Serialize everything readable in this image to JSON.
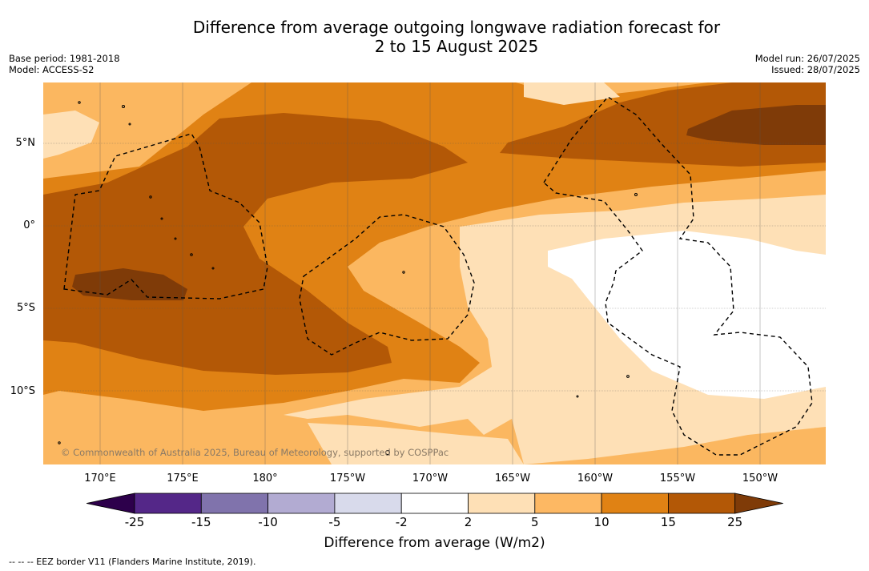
{
  "title": {
    "line1": "Difference from average outgoing longwave radiation forecast for",
    "line2": "2 to 15 August 2025"
  },
  "meta": {
    "base_period": "Base period: 1981-2018",
    "model": "Model: ACCESS-S2",
    "model_run": "Model run: 26/07/2025",
    "issued": "Issued: 28/07/2025"
  },
  "map": {
    "copyright": "© Commonwealth of Australia 2025, Bureau of Meteorology, supported by COSPPac",
    "lat_labels": [
      "5°N",
      "0°",
      "5°S",
      "10°S"
    ],
    "lon_labels": [
      "170°E",
      "175°E",
      "180°",
      "175°W",
      "170°W",
      "165°W",
      "160°W",
      "155°W",
      "150°W"
    ],
    "border_style": "dashed",
    "colors": {
      "c5_10": "#fbb760",
      "c10_15": "#e08214",
      "c15_25": "#b35806",
      "c25plus": "#7f3b08",
      "c2_5": "#fee0b6",
      "cneutral": "#ffffff"
    }
  },
  "colorbar": {
    "ticks": [
      "-25",
      "-15",
      "-10",
      "-5",
      "-2",
      "2",
      "5",
      "10",
      "15",
      "25"
    ],
    "colors": [
      "#2d004b",
      "#542788",
      "#8073ac",
      "#b2abd2",
      "#d8daeb",
      "#ffffff",
      "#fee0b6",
      "#fdb863",
      "#e08214",
      "#b35806",
      "#7f3b08"
    ],
    "label": "Difference from average (W/m2)"
  },
  "footnote": "--  --  -- EEZ border V11 (Flanders Marine Institute, 2019)."
}
